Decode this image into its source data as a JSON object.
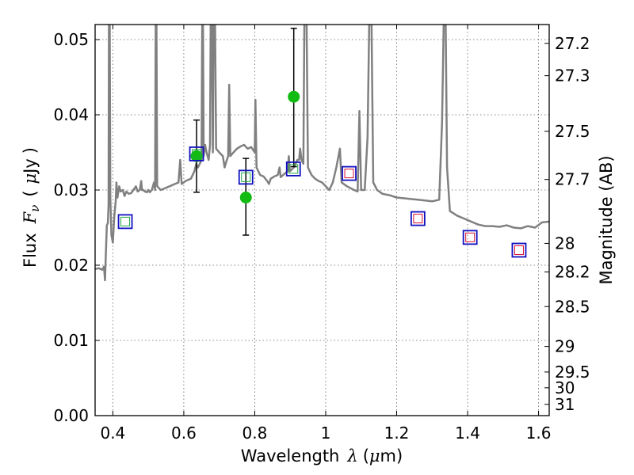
{
  "chart_data": {
    "type": "scatter",
    "title": "",
    "xlabel_parts": [
      "Wavelength",
      "λ",
      "(",
      "μ",
      "m)"
    ],
    "ylabel_parts": [
      "Flux",
      "F",
      "ν",
      "(",
      "μ",
      "Jy",
      ")"
    ],
    "ylabel_right": "Magnitude (AB)",
    "xlim": [
      0.35,
      1.63
    ],
    "ylim": [
      0.0,
      0.052
    ],
    "grid": true,
    "x_ticks": [
      {
        "value": 0.4,
        "label": "0.4"
      },
      {
        "value": 0.6,
        "label": "0.6"
      },
      {
        "value": 0.8,
        "label": "0.8"
      },
      {
        "value": 1.0,
        "label": "1"
      },
      {
        "value": 1.2,
        "label": "1.2"
      },
      {
        "value": 1.4,
        "label": "1.4"
      },
      {
        "value": 1.6,
        "label": "1.6"
      }
    ],
    "y_ticks": [
      {
        "value": 0.0,
        "label": "0.00"
      },
      {
        "value": 0.01,
        "label": "0.01"
      },
      {
        "value": 0.02,
        "label": "0.02"
      },
      {
        "value": 0.03,
        "label": "0.03"
      },
      {
        "value": 0.04,
        "label": "0.04"
      },
      {
        "value": 0.05,
        "label": "0.05"
      }
    ],
    "right_ticks": [
      {
        "flux": 0.0495,
        "label": "27.2"
      },
      {
        "flux": 0.0452,
        "label": "27.3"
      },
      {
        "flux": 0.0378,
        "label": "27.5"
      },
      {
        "flux": 0.0314,
        "label": "27.7"
      },
      {
        "flux": 0.0229,
        "label": "28"
      },
      {
        "flux": 0.0191,
        "label": "28.2"
      },
      {
        "flux": 0.0145,
        "label": "28.5"
      },
      {
        "flux": 0.0092,
        "label": "29"
      },
      {
        "flux": 0.0058,
        "label": "29.5"
      },
      {
        "flux": 0.0037,
        "label": "30"
      },
      {
        "flux": 0.0015,
        "label": "31"
      }
    ],
    "colors": {
      "sed": "#808080",
      "observed": "#11bb11",
      "model_box": "#1010c0",
      "nir_inner": "#dd1133",
      "opt_inner": "#22aa44",
      "errorbar": "#000000",
      "grid": "#666666"
    },
    "sed_spectrum": [
      [
        0.35,
        0.0195
      ],
      [
        0.36,
        0.0196
      ],
      [
        0.37,
        0.0194
      ],
      [
        0.375,
        0.0198
      ],
      [
        0.378,
        0.018
      ],
      [
        0.38,
        0.021
      ],
      [
        0.383,
        0.0253
      ],
      [
        0.386,
        0.0256
      ],
      [
        0.388,
        0.028
      ],
      [
        0.389,
        0.053
      ],
      [
        0.391,
        0.053
      ],
      [
        0.393,
        0.029
      ],
      [
        0.396,
        0.024
      ],
      [
        0.4,
        0.023
      ],
      [
        0.404,
        0.0265
      ],
      [
        0.408,
        0.0285
      ],
      [
        0.41,
        0.031
      ],
      [
        0.413,
        0.029
      ],
      [
        0.418,
        0.0305
      ],
      [
        0.422,
        0.0298
      ],
      [
        0.428,
        0.03
      ],
      [
        0.433,
        0.0292
      ],
      [
        0.438,
        0.0298
      ],
      [
        0.445,
        0.0295
      ],
      [
        0.452,
        0.0296
      ],
      [
        0.458,
        0.03
      ],
      [
        0.465,
        0.0305
      ],
      [
        0.47,
        0.0298
      ],
      [
        0.476,
        0.03
      ],
      [
        0.48,
        0.0312
      ],
      [
        0.482,
        0.03
      ],
      [
        0.486,
        0.03
      ],
      [
        0.49,
        0.0298
      ],
      [
        0.496,
        0.0297
      ],
      [
        0.5,
        0.03
      ],
      [
        0.504,
        0.0297
      ],
      [
        0.51,
        0.03
      ],
      [
        0.516,
        0.031
      ],
      [
        0.519,
        0.03
      ],
      [
        0.521,
        0.053
      ],
      [
        0.523,
        0.053
      ],
      [
        0.525,
        0.0305
      ],
      [
        0.535,
        0.03
      ],
      [
        0.545,
        0.0302
      ],
      [
        0.56,
        0.0305
      ],
      [
        0.575,
        0.0308
      ],
      [
        0.585,
        0.031
      ],
      [
        0.59,
        0.034
      ],
      [
        0.594,
        0.0308
      ],
      [
        0.605,
        0.0312
      ],
      [
        0.62,
        0.0315
      ],
      [
        0.63,
        0.0325
      ],
      [
        0.635,
        0.0335
      ],
      [
        0.64,
        0.033
      ],
      [
        0.645,
        0.0335
      ],
      [
        0.65,
        0.034
      ],
      [
        0.652,
        0.053
      ],
      [
        0.654,
        0.053
      ],
      [
        0.656,
        0.0345
      ],
      [
        0.66,
        0.036
      ],
      [
        0.664,
        0.035
      ],
      [
        0.67,
        0.034
      ],
      [
        0.674,
        0.036
      ],
      [
        0.676,
        0.053
      ],
      [
        0.679,
        0.053
      ],
      [
        0.682,
        0.035
      ],
      [
        0.684,
        0.053
      ],
      [
        0.688,
        0.053
      ],
      [
        0.691,
        0.0355
      ],
      [
        0.7,
        0.035
      ],
      [
        0.71,
        0.0345
      ],
      [
        0.715,
        0.033
      ],
      [
        0.72,
        0.0338
      ],
      [
        0.725,
        0.0345
      ],
      [
        0.728,
        0.044
      ],
      [
        0.731,
        0.0345
      ],
      [
        0.74,
        0.035
      ],
      [
        0.75,
        0.0355
      ],
      [
        0.76,
        0.0358
      ],
      [
        0.77,
        0.036
      ],
      [
        0.78,
        0.0355
      ],
      [
        0.79,
        0.0357
      ],
      [
        0.8,
        0.035
      ],
      [
        0.802,
        0.042
      ],
      [
        0.805,
        0.033
      ],
      [
        0.815,
        0.032
      ],
      [
        0.825,
        0.0318
      ],
      [
        0.835,
        0.0312
      ],
      [
        0.84,
        0.0308
      ],
      [
        0.845,
        0.0315
      ],
      [
        0.855,
        0.0318
      ],
      [
        0.865,
        0.032
      ],
      [
        0.87,
        0.033
      ],
      [
        0.873,
        0.0317
      ],
      [
        0.885,
        0.0322
      ],
      [
        0.893,
        0.0325
      ],
      [
        0.896,
        0.0345
      ],
      [
        0.899,
        0.0325
      ],
      [
        0.91,
        0.033
      ],
      [
        0.92,
        0.034
      ],
      [
        0.925,
        0.034
      ],
      [
        0.928,
        0.0355
      ],
      [
        0.932,
        0.034
      ],
      [
        0.937,
        0.0335
      ],
      [
        0.94,
        0.053
      ],
      [
        0.946,
        0.053
      ],
      [
        0.95,
        0.033
      ],
      [
        0.96,
        0.032
      ],
      [
        0.97,
        0.0315
      ],
      [
        0.98,
        0.0312
      ],
      [
        0.99,
        0.031
      ],
      [
        1.0,
        0.0305
      ],
      [
        1.01,
        0.03
      ],
      [
        1.02,
        0.031
      ],
      [
        1.03,
        0.033
      ],
      [
        1.04,
        0.0355
      ],
      [
        1.045,
        0.031
      ],
      [
        1.06,
        0.0305
      ],
      [
        1.08,
        0.03
      ],
      [
        1.09,
        0.0298
      ],
      [
        1.095,
        0.0405
      ],
      [
        1.1,
        0.03
      ],
      [
        1.11,
        0.03
      ],
      [
        1.118,
        0.037
      ],
      [
        1.123,
        0.053
      ],
      [
        1.129,
        0.053
      ],
      [
        1.134,
        0.031
      ],
      [
        1.145,
        0.03
      ],
      [
        1.16,
        0.0295
      ],
      [
        1.18,
        0.0293
      ],
      [
        1.2,
        0.029
      ],
      [
        1.22,
        0.0289
      ],
      [
        1.24,
        0.0288
      ],
      [
        1.26,
        0.0287
      ],
      [
        1.28,
        0.0286
      ],
      [
        1.3,
        0.0285
      ],
      [
        1.32,
        0.0287
      ],
      [
        1.328,
        0.039
      ],
      [
        1.333,
        0.053
      ],
      [
        1.338,
        0.053
      ],
      [
        1.342,
        0.033
      ],
      [
        1.35,
        0.0272
      ],
      [
        1.37,
        0.0266
      ],
      [
        1.39,
        0.0262
      ],
      [
        1.41,
        0.0258
      ],
      [
        1.43,
        0.0254
      ],
      [
        1.45,
        0.0252
      ],
      [
        1.47,
        0.0252
      ],
      [
        1.49,
        0.0251
      ],
      [
        1.51,
        0.0253
      ],
      [
        1.53,
        0.025
      ],
      [
        1.55,
        0.0249
      ],
      [
        1.57,
        0.0252
      ],
      [
        1.59,
        0.025
      ],
      [
        1.61,
        0.0257
      ],
      [
        1.63,
        0.0258
      ]
    ],
    "model_points": [
      {
        "x": 0.435,
        "y": 0.0258,
        "band": "optical"
      },
      {
        "x": 0.636,
        "y": 0.0348,
        "band": "optical"
      },
      {
        "x": 0.775,
        "y": 0.0317,
        "band": "optical"
      },
      {
        "x": 0.909,
        "y": 0.0328,
        "band": "optical"
      },
      {
        "x": 1.066,
        "y": 0.0322,
        "band": "nir"
      },
      {
        "x": 1.26,
        "y": 0.0262,
        "band": "nir"
      },
      {
        "x": 1.407,
        "y": 0.0237,
        "band": "nir"
      },
      {
        "x": 1.545,
        "y": 0.022,
        "band": "nir"
      }
    ],
    "observed_points": [
      {
        "x": 0.636,
        "y": 0.0345,
        "yerr_low": 0.0048,
        "yerr_high": 0.0048
      },
      {
        "x": 0.775,
        "y": 0.029,
        "yerr_low": 0.005,
        "yerr_high": 0.0052
      },
      {
        "x": 0.91,
        "y": 0.0424,
        "yerr_low": 0.0093,
        "yerr_high": 0.0091
      }
    ]
  }
}
